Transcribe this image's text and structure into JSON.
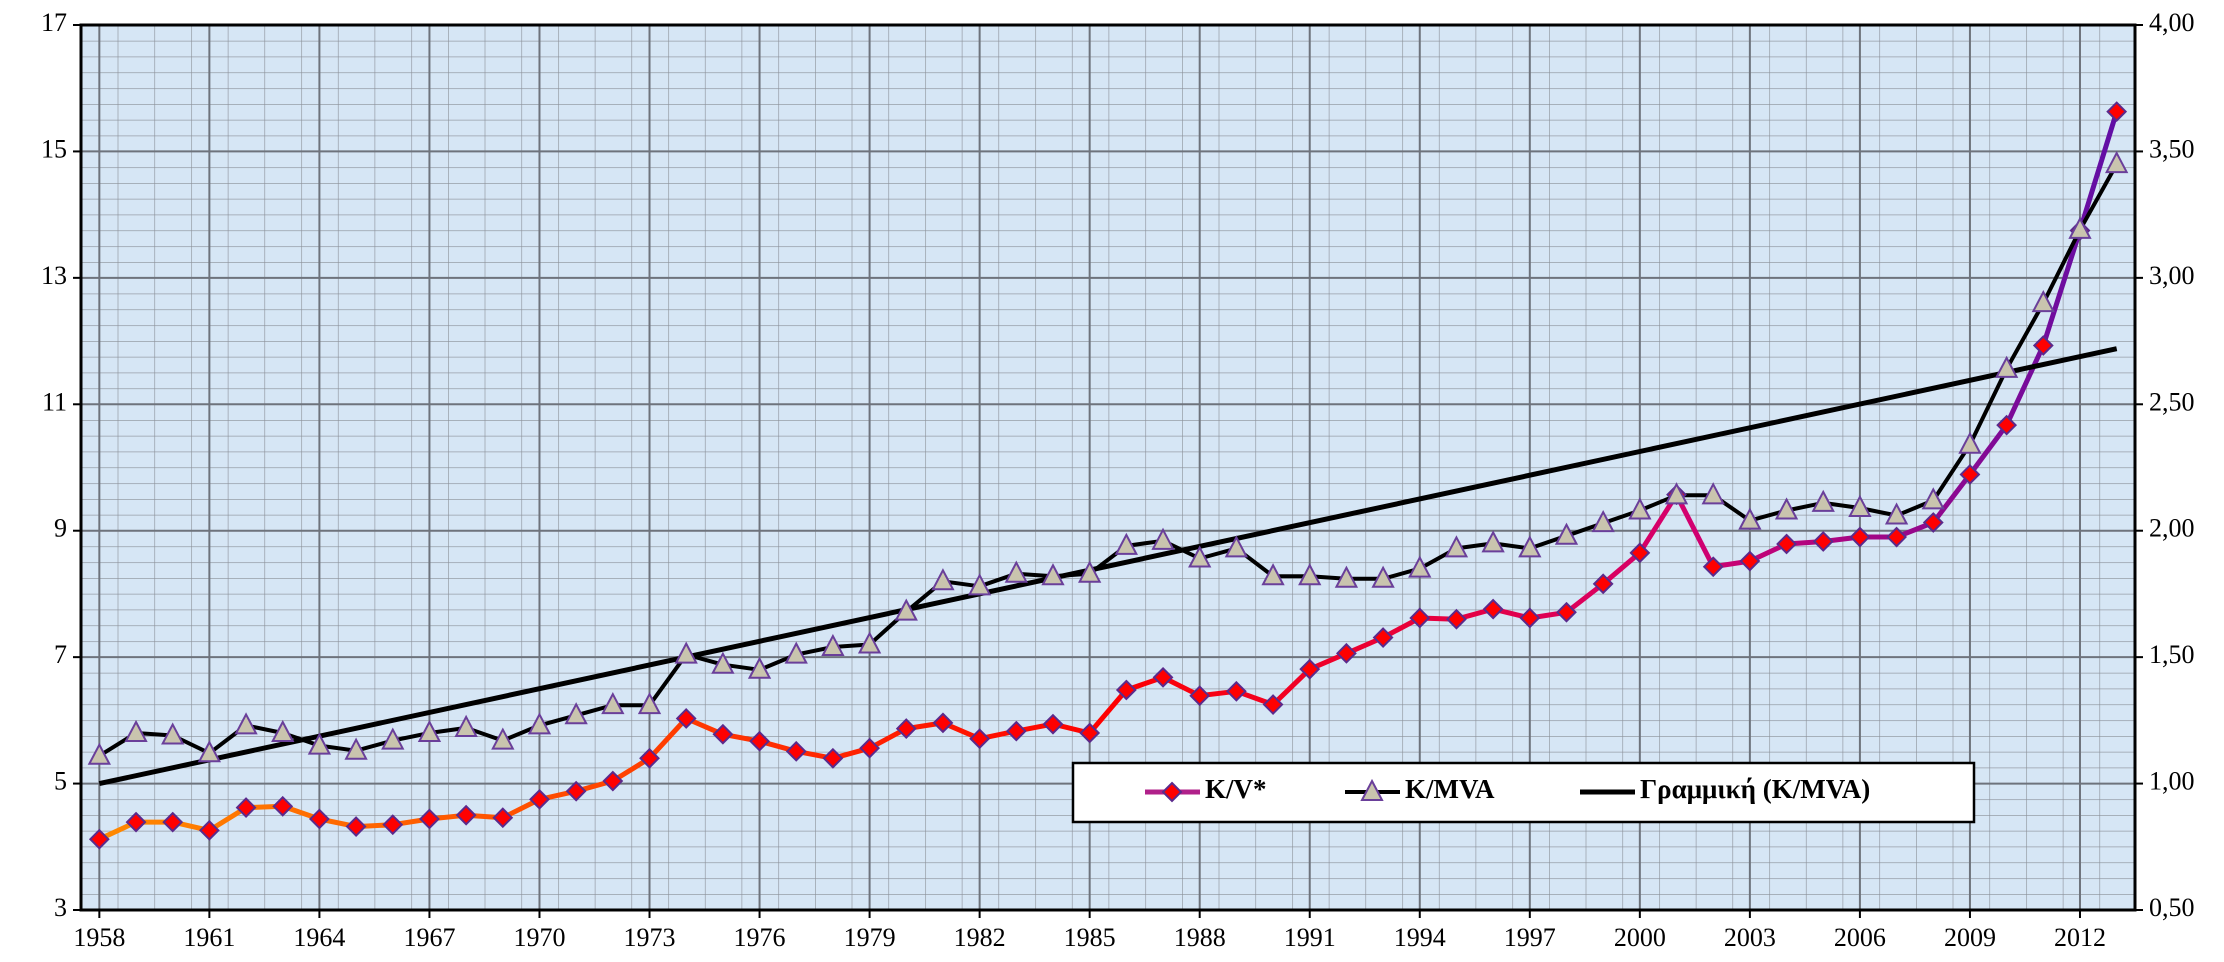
{
  "chart_data": {
    "type": "line",
    "x": [
      1958,
      1959,
      1960,
      1961,
      1962,
      1963,
      1964,
      1965,
      1966,
      1967,
      1968,
      1969,
      1970,
      1971,
      1972,
      1973,
      1974,
      1975,
      1976,
      1977,
      1978,
      1979,
      1980,
      1981,
      1982,
      1983,
      1984,
      1985,
      1986,
      1987,
      1988,
      1989,
      1990,
      1991,
      1992,
      1993,
      1994,
      1995,
      1996,
      1997,
      1998,
      1999,
      2000,
      2001,
      2002,
      2003,
      2004,
      2005,
      2006,
      2007,
      2008,
      2009,
      2010,
      2011,
      2012,
      2013
    ],
    "xlim": [
      1957.5,
      2013.5
    ],
    "xticks": [
      1958,
      1961,
      1964,
      1967,
      1970,
      1973,
      1976,
      1979,
      1982,
      1985,
      1988,
      1991,
      1994,
      1997,
      2000,
      2003,
      2006,
      2009,
      2012
    ],
    "ylim": [
      3,
      17
    ],
    "yticks": [
      3,
      5,
      7,
      9,
      11,
      13,
      15,
      17
    ],
    "y2lim": [
      0.5,
      4.0
    ],
    "y2ticks": [
      {
        "value": 0.5,
        "label": "0,50"
      },
      {
        "value": 1.0,
        "label": "1,00"
      },
      {
        "value": 1.5,
        "label": "1,50"
      },
      {
        "value": 2.0,
        "label": "2,00"
      },
      {
        "value": 2.5,
        "label": "2,50"
      },
      {
        "value": 3.0,
        "label": "3,00"
      },
      {
        "value": 3.5,
        "label": "3,50"
      },
      {
        "value": 4.0,
        "label": "4,00"
      }
    ],
    "grid": true,
    "series": [
      {
        "name": "K/V*",
        "color": "#ff0000",
        "values": [
          4.12,
          4.39,
          4.39,
          4.26,
          4.62,
          4.64,
          4.44,
          4.32,
          4.35,
          4.44,
          4.5,
          4.46,
          4.75,
          4.88,
          5.04,
          5.4,
          6.03,
          5.78,
          5.67,
          5.51,
          5.4,
          5.56,
          5.87,
          5.96,
          5.71,
          5.83,
          5.94,
          5.8,
          6.48,
          6.68,
          6.39,
          6.46,
          6.25,
          6.81,
          7.06,
          7.31,
          7.62,
          7.6,
          7.76,
          7.62,
          7.71,
          8.16,
          8.65,
          9.57,
          8.43,
          8.52,
          8.79,
          8.83,
          8.9,
          8.9,
          9.13,
          9.89,
          10.67,
          11.93,
          13.75,
          15.63
        ]
      },
      {
        "name": "K/MVA",
        "color": "#000000",
        "axis": "y2",
        "values": [
          1.11,
          1.2,
          1.19,
          1.12,
          1.23,
          1.2,
          1.15,
          1.13,
          1.17,
          1.2,
          1.22,
          1.17,
          1.23,
          1.27,
          1.31,
          1.31,
          1.51,
          1.47,
          1.45,
          1.51,
          1.54,
          1.55,
          1.68,
          1.8,
          1.78,
          1.83,
          1.82,
          1.83,
          1.94,
          1.96,
          1.89,
          1.93,
          1.82,
          1.82,
          1.81,
          1.81,
          1.85,
          1.93,
          1.95,
          1.93,
          1.98,
          2.03,
          2.08,
          2.14,
          2.14,
          2.04,
          2.08,
          2.11,
          2.09,
          2.06,
          2.12,
          2.34,
          2.64,
          2.9,
          3.19,
          3.45
        ]
      },
      {
        "name": "Γραμμική (K/MVA)",
        "color": "#000000",
        "axis": "y2",
        "x": [
          1958,
          2013
        ],
        "values": [
          1.0,
          2.72
        ]
      }
    ]
  }
}
